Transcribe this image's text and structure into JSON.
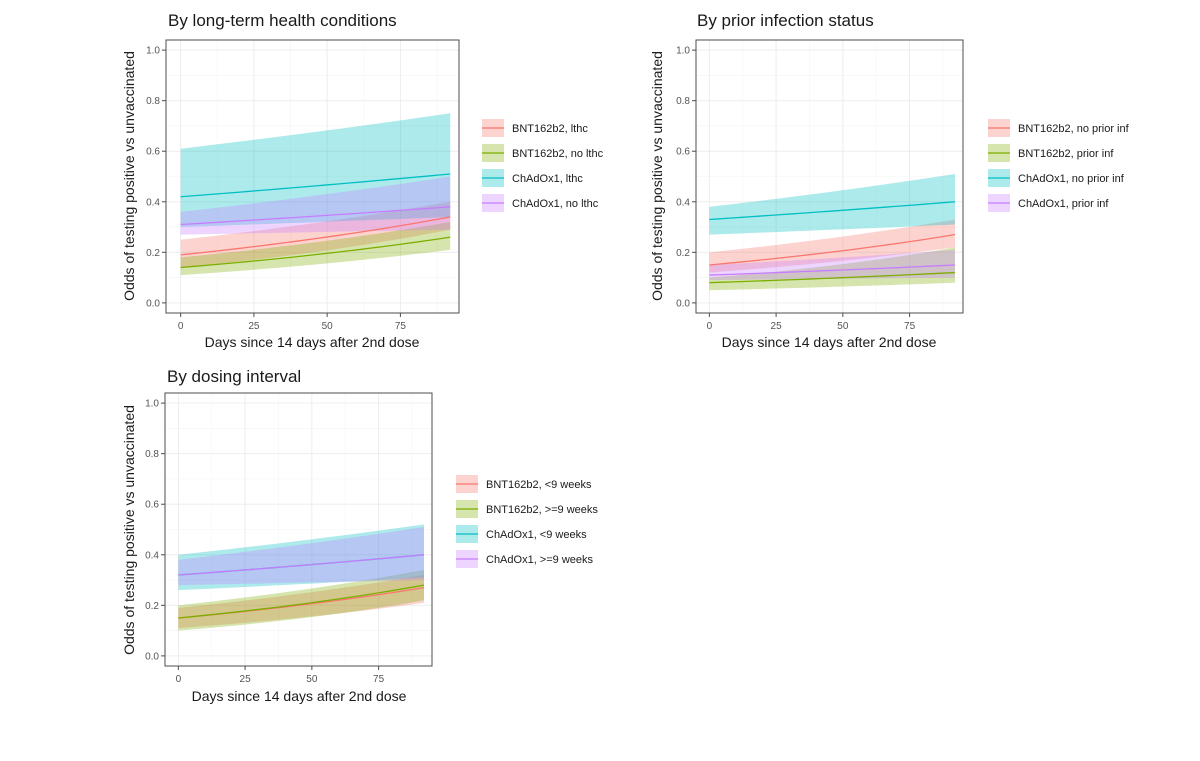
{
  "figure": {
    "ylabel": "Odds of testing positive vs unvaccinated",
    "xlabel": "Days since 14 days after 2nd dose"
  },
  "colors": {
    "s1": "#F8766D",
    "s2": "#7CAE00",
    "s3": "#00BFC4",
    "s4": "#C77CFF"
  },
  "chart_data": [
    {
      "type": "line",
      "title": "By long-term health conditions",
      "xlabel": "Days since 14 days after 2nd dose",
      "ylabel": "Odds of testing positive vs unvaccinated",
      "xlim": [
        -5,
        95
      ],
      "ylim": [
        -0.04,
        1.04
      ],
      "xticks": [
        0,
        25,
        50,
        75
      ],
      "yticks": [
        0.0,
        0.2,
        0.4,
        0.6,
        0.8,
        1.0
      ],
      "xtick_labels": [
        "0",
        "25",
        "50",
        "75"
      ],
      "ytick_labels": [
        "0.0",
        "0.2",
        "0.4",
        "0.6",
        "0.8",
        "1.0"
      ],
      "grid": true,
      "legend_position": "right",
      "x": [
        0,
        92
      ],
      "series": [
        {
          "name": "BNT162b2, lthc",
          "color": "#F8766D",
          "y": [
            0.19,
            0.34
          ],
          "lower": [
            0.14,
            0.29
          ],
          "upper": [
            0.25,
            0.4
          ]
        },
        {
          "name": "BNT162b2, no lthc",
          "color": "#7CAE00",
          "y": [
            0.14,
            0.26
          ],
          "lower": [
            0.11,
            0.21
          ],
          "upper": [
            0.18,
            0.32
          ]
        },
        {
          "name": "ChAdOx1, lthc",
          "color": "#00BFC4",
          "y": [
            0.42,
            0.51
          ],
          "lower": [
            0.3,
            0.34
          ],
          "upper": [
            0.61,
            0.75
          ]
        },
        {
          "name": "ChAdOx1, no lthc",
          "color": "#C77CFF",
          "y": [
            0.31,
            0.38
          ],
          "lower": [
            0.27,
            0.29
          ],
          "upper": [
            0.36,
            0.5
          ]
        }
      ]
    },
    {
      "type": "line",
      "title": "By prior infection status",
      "xlabel": "Days since 14 days after 2nd dose",
      "ylabel": "Odds of testing positive vs unvaccinated",
      "xlim": [
        -5,
        95
      ],
      "ylim": [
        -0.04,
        1.04
      ],
      "xticks": [
        0,
        25,
        50,
        75
      ],
      "yticks": [
        0.0,
        0.2,
        0.4,
        0.6,
        0.8,
        1.0
      ],
      "xtick_labels": [
        "0",
        "25",
        "50",
        "75"
      ],
      "ytick_labels": [
        "0.0",
        "0.2",
        "0.4",
        "0.6",
        "0.8",
        "1.0"
      ],
      "grid": true,
      "legend_position": "right",
      "x": [
        0,
        92
      ],
      "series": [
        {
          "name": "BNT162b2, no prior inf",
          "color": "#F8766D",
          "y": [
            0.15,
            0.27
          ],
          "lower": [
            0.12,
            0.22
          ],
          "upper": [
            0.2,
            0.33
          ]
        },
        {
          "name": "BNT162b2, prior inf",
          "color": "#7CAE00",
          "y": [
            0.08,
            0.12
          ],
          "lower": [
            0.05,
            0.08
          ],
          "upper": [
            0.1,
            0.22
          ]
        },
        {
          "name": "ChAdOx1, no prior inf",
          "color": "#00BFC4",
          "y": [
            0.33,
            0.4
          ],
          "lower": [
            0.27,
            0.31
          ],
          "upper": [
            0.38,
            0.51
          ]
        },
        {
          "name": "ChAdOx1, prior inf",
          "color": "#C77CFF",
          "y": [
            0.11,
            0.15
          ],
          "lower": [
            0.09,
            0.1
          ],
          "upper": [
            0.15,
            0.21
          ]
        }
      ]
    },
    {
      "type": "line",
      "title": "By dosing interval",
      "xlabel": "Days since 14 days after 2nd dose",
      "ylabel": "Odds of testing positive vs unvaccinated",
      "xlim": [
        -5,
        95
      ],
      "ylim": [
        -0.04,
        1.04
      ],
      "xticks": [
        0,
        25,
        50,
        75
      ],
      "yticks": [
        0.0,
        0.2,
        0.4,
        0.6,
        0.8,
        1.0
      ],
      "xtick_labels": [
        "0",
        "25",
        "50",
        "75"
      ],
      "ytick_labels": [
        "0.0",
        "0.2",
        "0.4",
        "0.6",
        "0.8",
        "1.0"
      ],
      "grid": true,
      "legend_position": "right",
      "x": [
        0,
        92
      ],
      "series": [
        {
          "name": "BNT162b2, <9 weeks",
          "color": "#F8766D",
          "y": [
            0.15,
            0.27
          ],
          "lower": [
            0.11,
            0.21
          ],
          "upper": [
            0.19,
            0.32
          ]
        },
        {
          "name": "BNT162b2, >=9 weeks",
          "color": "#7CAE00",
          "y": [
            0.15,
            0.28
          ],
          "lower": [
            0.1,
            0.22
          ],
          "upper": [
            0.2,
            0.34
          ]
        },
        {
          "name": "ChAdOx1, <9 weeks",
          "color": "#00BFC4",
          "y": [
            0.32,
            0.4
          ],
          "lower": [
            0.26,
            0.31
          ],
          "upper": [
            0.4,
            0.52
          ]
        },
        {
          "name": "ChAdOx1, >=9 weeks",
          "color": "#C77CFF",
          "y": [
            0.32,
            0.4
          ],
          "lower": [
            0.28,
            0.3
          ],
          "upper": [
            0.38,
            0.51
          ]
        }
      ]
    }
  ]
}
